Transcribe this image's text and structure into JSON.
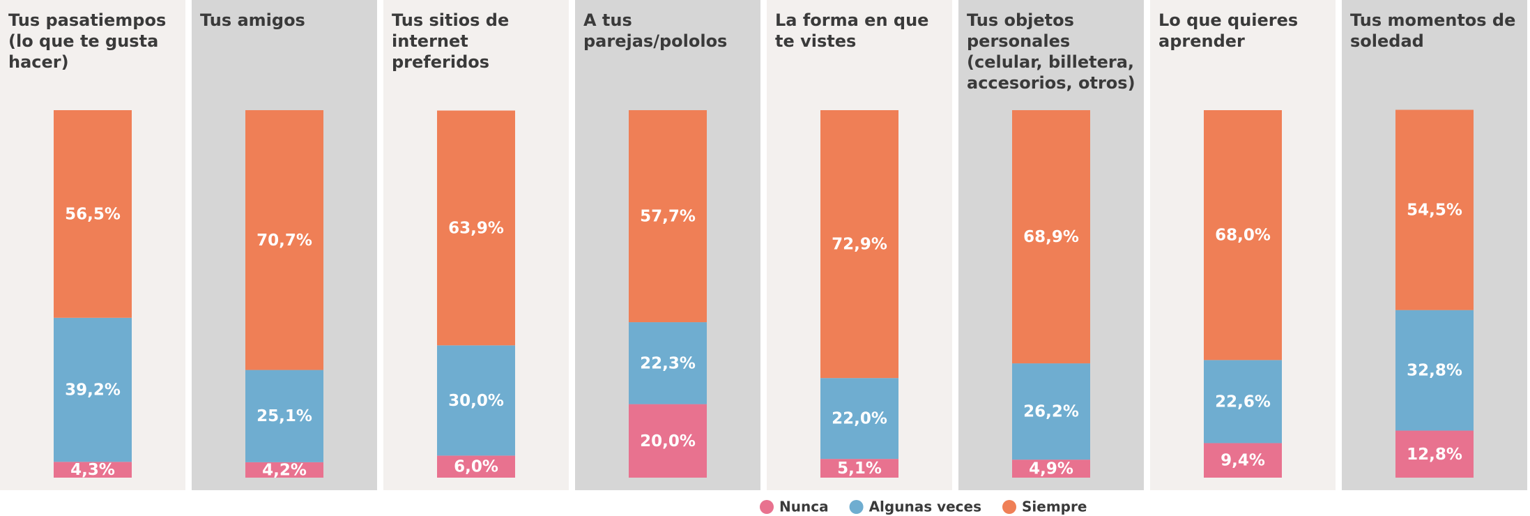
{
  "chart_data": {
    "type": "stacked_bar",
    "categories": [
      "Tus pasatiempos (lo que te gusta hacer)",
      "Tus amigos",
      "Tus sitios de internet preferidos",
      "A tus parejas/pololos",
      "La forma en que te vistes",
      "Tus objetos personales (celular, billetera, accesorios, otros)",
      "Lo que quieres aprender",
      "Tus momentos de soledad"
    ],
    "series": [
      {
        "name": "Nunca",
        "color": "#e8728f",
        "values": [
          4.3,
          4.2,
          6.0,
          20.0,
          5.1,
          4.9,
          9.4,
          12.8
        ],
        "value_labels": [
          "4,3%",
          "4,2%",
          "6,0%",
          "20,0%",
          "5,1%",
          "4,9%",
          "9,4%",
          "12,8%"
        ]
      },
      {
        "name": "Algunas veces",
        "color": "#6fadd0",
        "values": [
          39.2,
          25.1,
          30.0,
          22.3,
          22.0,
          26.2,
          22.6,
          32.8
        ],
        "value_labels": [
          "39,2%",
          "25,1%",
          "30,0%",
          "22,3%",
          "22,0%",
          "26,2%",
          "22,6%",
          "32,8%"
        ]
      },
      {
        "name": "Siempre",
        "color": "#ef7f56",
        "values": [
          56.5,
          70.7,
          63.9,
          57.7,
          72.9,
          68.9,
          68.0,
          54.5
        ],
        "value_labels": [
          "56,5%",
          "70,7%",
          "63,9%",
          "57,7%",
          "72,9%",
          "68,9%",
          "68,0%",
          "54,5%"
        ]
      }
    ],
    "ylim": [
      0,
      100
    ],
    "panel_colors": [
      "#f3f0ee",
      "#d6d6d6"
    ],
    "legend": "bottom"
  }
}
